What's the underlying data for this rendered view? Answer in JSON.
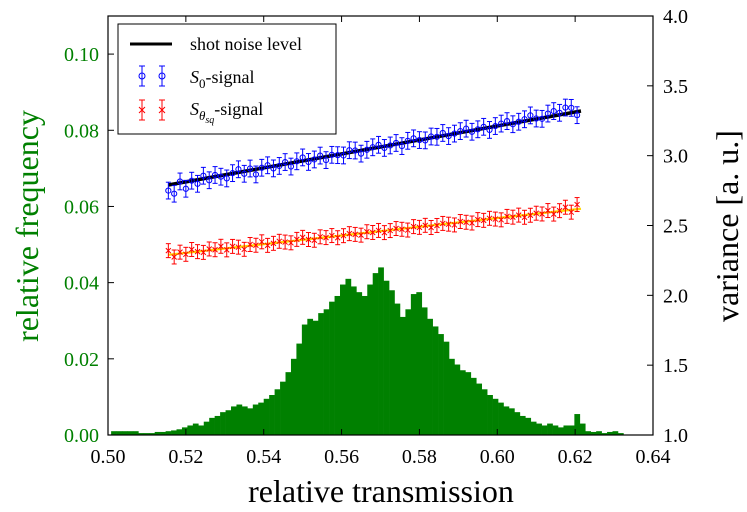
{
  "chart_data": {
    "type": "bar",
    "xlabel": "relative transmission",
    "ylabel_left": "relative frequency",
    "ylabel_right": "variance [a. u.]",
    "xlim": [
      0.5,
      0.64
    ],
    "ylim_left": [
      0.0,
      0.11
    ],
    "ylim_right": [
      1.0,
      4.0
    ],
    "x_ticks": [
      "0.50",
      "0.52",
      "0.54",
      "0.56",
      "0.58",
      "0.60",
      "0.62",
      "0.64"
    ],
    "y_left_ticks": [
      "0.00",
      "0.02",
      "0.04",
      "0.06",
      "0.08",
      "0.10"
    ],
    "y_right_ticks": [
      "1.0",
      "1.5",
      "2.0",
      "2.5",
      "3.0",
      "3.5",
      "4.0"
    ],
    "legend_position": "top-left",
    "legend": {
      "shot": "shot noise level",
      "s0_base": "S",
      "s0_sub": "0",
      "s0_suffix": "-signal",
      "ssq_base": "S",
      "ssq_sub": "θ",
      "ssq_subsub": "sq",
      "ssq_suffix": "-signal"
    },
    "colors": {
      "histogram": "#008000",
      "s0": "#0000ff",
      "ssq": "#ff0000",
      "shot_line": "#000000",
      "fit_line": "#ffd700"
    },
    "histogram": {
      "bin_width": 0.0014,
      "bins": [
        [
          0.5015,
          0.001
        ],
        [
          0.5029,
          0.001
        ],
        [
          0.5043,
          0.001
        ],
        [
          0.5057,
          0.001
        ],
        [
          0.5071,
          0.001
        ],
        [
          0.5085,
          0.0005
        ],
        [
          0.5099,
          0.0005
        ],
        [
          0.5113,
          0.0005
        ],
        [
          0.5127,
          0.0008
        ],
        [
          0.5141,
          0.0008
        ],
        [
          0.5155,
          0.001
        ],
        [
          0.5169,
          0.0012
        ],
        [
          0.5183,
          0.0015
        ],
        [
          0.5197,
          0.002
        ],
        [
          0.5211,
          0.0025
        ],
        [
          0.5225,
          0.003
        ],
        [
          0.5239,
          0.0025
        ],
        [
          0.5253,
          0.0035
        ],
        [
          0.5267,
          0.0045
        ],
        [
          0.5281,
          0.005
        ],
        [
          0.5295,
          0.006
        ],
        [
          0.5309,
          0.0065
        ],
        [
          0.5323,
          0.0075
        ],
        [
          0.5337,
          0.008
        ],
        [
          0.5351,
          0.0075
        ],
        [
          0.5365,
          0.007
        ],
        [
          0.5379,
          0.008
        ],
        [
          0.5393,
          0.0085
        ],
        [
          0.5407,
          0.0095
        ],
        [
          0.5421,
          0.0105
        ],
        [
          0.5435,
          0.012
        ],
        [
          0.5449,
          0.014
        ],
        [
          0.5463,
          0.0165
        ],
        [
          0.5477,
          0.02
        ],
        [
          0.5491,
          0.024
        ],
        [
          0.5505,
          0.029
        ],
        [
          0.5519,
          0.0305
        ],
        [
          0.5533,
          0.03
        ],
        [
          0.5547,
          0.032
        ],
        [
          0.5561,
          0.033
        ],
        [
          0.5575,
          0.035
        ],
        [
          0.5589,
          0.0365
        ],
        [
          0.5603,
          0.0395
        ],
        [
          0.5617,
          0.041
        ],
        [
          0.5631,
          0.039
        ],
        [
          0.5645,
          0.0375
        ],
        [
          0.5659,
          0.0365
        ],
        [
          0.5673,
          0.0395
        ],
        [
          0.5687,
          0.0425
        ],
        [
          0.5701,
          0.044
        ],
        [
          0.5715,
          0.0405
        ],
        [
          0.5729,
          0.038
        ],
        [
          0.5743,
          0.0345
        ],
        [
          0.5757,
          0.031
        ],
        [
          0.5771,
          0.033
        ],
        [
          0.5785,
          0.037
        ],
        [
          0.5799,
          0.0375
        ],
        [
          0.5813,
          0.0335
        ],
        [
          0.5827,
          0.0305
        ],
        [
          0.5841,
          0.0285
        ],
        [
          0.5855,
          0.0265
        ],
        [
          0.5869,
          0.0245
        ],
        [
          0.5883,
          0.02
        ],
        [
          0.5897,
          0.0185
        ],
        [
          0.5911,
          0.017
        ],
        [
          0.5925,
          0.0165
        ],
        [
          0.5939,
          0.015
        ],
        [
          0.5953,
          0.0135
        ],
        [
          0.5967,
          0.012
        ],
        [
          0.5981,
          0.0105
        ],
        [
          0.5995,
          0.0095
        ],
        [
          0.6009,
          0.0085
        ],
        [
          0.6023,
          0.0075
        ],
        [
          0.6037,
          0.007
        ],
        [
          0.6051,
          0.006
        ],
        [
          0.6065,
          0.005
        ],
        [
          0.6079,
          0.0045
        ],
        [
          0.6093,
          0.0035
        ],
        [
          0.6107,
          0.003
        ],
        [
          0.6121,
          0.0025
        ],
        [
          0.6135,
          0.003
        ],
        [
          0.6149,
          0.0025
        ],
        [
          0.6163,
          0.002
        ],
        [
          0.6177,
          0.0025
        ],
        [
          0.6191,
          0.0025
        ],
        [
          0.6205,
          0.0055
        ],
        [
          0.6219,
          0.003
        ],
        [
          0.6233,
          0.001
        ],
        [
          0.6247,
          0.0008
        ],
        [
          0.6261,
          0.001
        ],
        [
          0.6275,
          0.0005
        ],
        [
          0.6289,
          0.0008
        ],
        [
          0.6303,
          0.001
        ],
        [
          0.6317,
          0.0005
        ]
      ]
    },
    "series": [
      {
        "name": "S0-signal",
        "marker": "circle",
        "x_start": 0.5155,
        "x_step": 0.0015,
        "count": 71,
        "y_start": 2.78,
        "y_end": 3.32,
        "wiggle": [
          -0.03,
          -0.06,
          0.02,
          -0.04,
          0.01,
          -0.02,
          0.03,
          -0.01,
          0.02,
          0.0,
          -0.02,
          0.01,
          0.03,
          -0.01,
          0.02,
          -0.03,
          0.01,
          0.02,
          -0.01,
          0.0,
          0.02,
          -0.02,
          0.01,
          0.03,
          -0.01,
          0.0,
          0.02,
          -0.02,
          0.01,
          0.0,
          -0.01,
          0.02,
          0.01,
          -0.02,
          0.0,
          0.01,
          0.02,
          -0.01,
          0.0,
          0.01,
          -0.02,
          0.01,
          0.02,
          0.0,
          -0.01,
          0.01,
          0.0,
          0.02,
          -0.01,
          0.0,
          0.01,
          0.02,
          -0.01,
          0.0,
          0.01,
          -0.02,
          0.0,
          0.01,
          0.02,
          -0.01,
          0.0,
          0.01,
          0.03,
          0.0,
          -0.01,
          0.02,
          0.03,
          0.01,
          0.04,
          0.03,
          -0.03
        ],
        "error": 0.06
      },
      {
        "name": "Sθsq-signal",
        "marker": "x",
        "x_start": 0.5155,
        "x_step": 0.0015,
        "count": 71,
        "y_start": 2.29,
        "y_end": 2.61,
        "wiggle": [
          0.03,
          -0.02,
          0.01,
          -0.01,
          0.02,
          0.0,
          -0.01,
          0.01,
          0.0,
          0.02,
          -0.01,
          0.01,
          0.0,
          -0.02,
          0.01,
          0.0,
          0.02,
          -0.01,
          0.0,
          0.01,
          0.0,
          -0.01,
          0.01,
          0.02,
          0.0,
          -0.01,
          0.01,
          0.0,
          0.01,
          -0.01,
          0.0,
          0.01,
          0.0,
          -0.01,
          0.01,
          0.0,
          0.01,
          -0.01,
          0.0,
          0.01,
          0.0,
          -0.01,
          0.01,
          0.0,
          0.01,
          -0.01,
          0.0,
          0.01,
          0.0,
          -0.01,
          0.01,
          0.0,
          -0.01,
          0.01,
          0.0,
          0.01,
          0.0,
          -0.01,
          0.01,
          0.0,
          0.01,
          -0.01,
          0.0,
          0.01,
          0.0,
          0.02,
          -0.01,
          0.01,
          0.03,
          -0.01,
          0.04
        ],
        "error": 0.05
      }
    ],
    "shot_noise_line": {
      "x": [
        0.5155,
        0.6215
      ],
      "y": [
        2.79,
        3.32
      ]
    },
    "fit_line": {
      "x": [
        0.5155,
        0.6215
      ],
      "y": [
        2.29,
        2.62
      ]
    }
  }
}
